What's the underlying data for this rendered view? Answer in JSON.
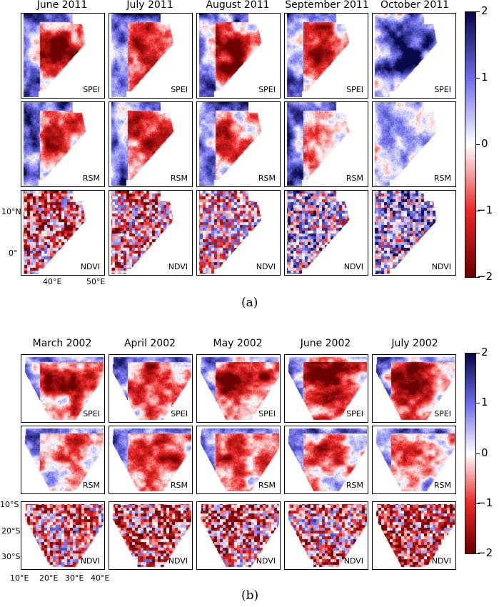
{
  "figure_a": {
    "columns": [
      "June 2011",
      "July 2011",
      "August 2011",
      "September 2011",
      "October 2011"
    ],
    "rows": [
      "SPEI",
      "RSM",
      "NDVI"
    ],
    "lat_labels": [
      "10°N",
      "0°"
    ],
    "lon_labels": [
      "40°E",
      "50°E"
    ],
    "colorbar_ticks": [
      "2",
      "1",
      "0",
      "−1",
      "−2"
    ],
    "caption": "(a)"
  },
  "figure_b": {
    "columns": [
      "March 2002",
      "April 2002",
      "May 2002",
      "June 2002",
      "July 2002"
    ],
    "rows": [
      "SPEI",
      "RSM",
      "NDVI"
    ],
    "lat_labels": [
      "10°S",
      "20°S",
      "30°S"
    ],
    "lon_labels": [
      "10°E",
      "20°E",
      "30°E",
      "40°E"
    ],
    "colorbar_ticks": [
      "2",
      "1",
      "0",
      "−1",
      "−2"
    ],
    "caption": "(b)"
  },
  "colorscale": {
    "high": "#08084a",
    "mid": "#ffffff",
    "low": "#6a0000",
    "range": [
      -2,
      2
    ]
  }
}
